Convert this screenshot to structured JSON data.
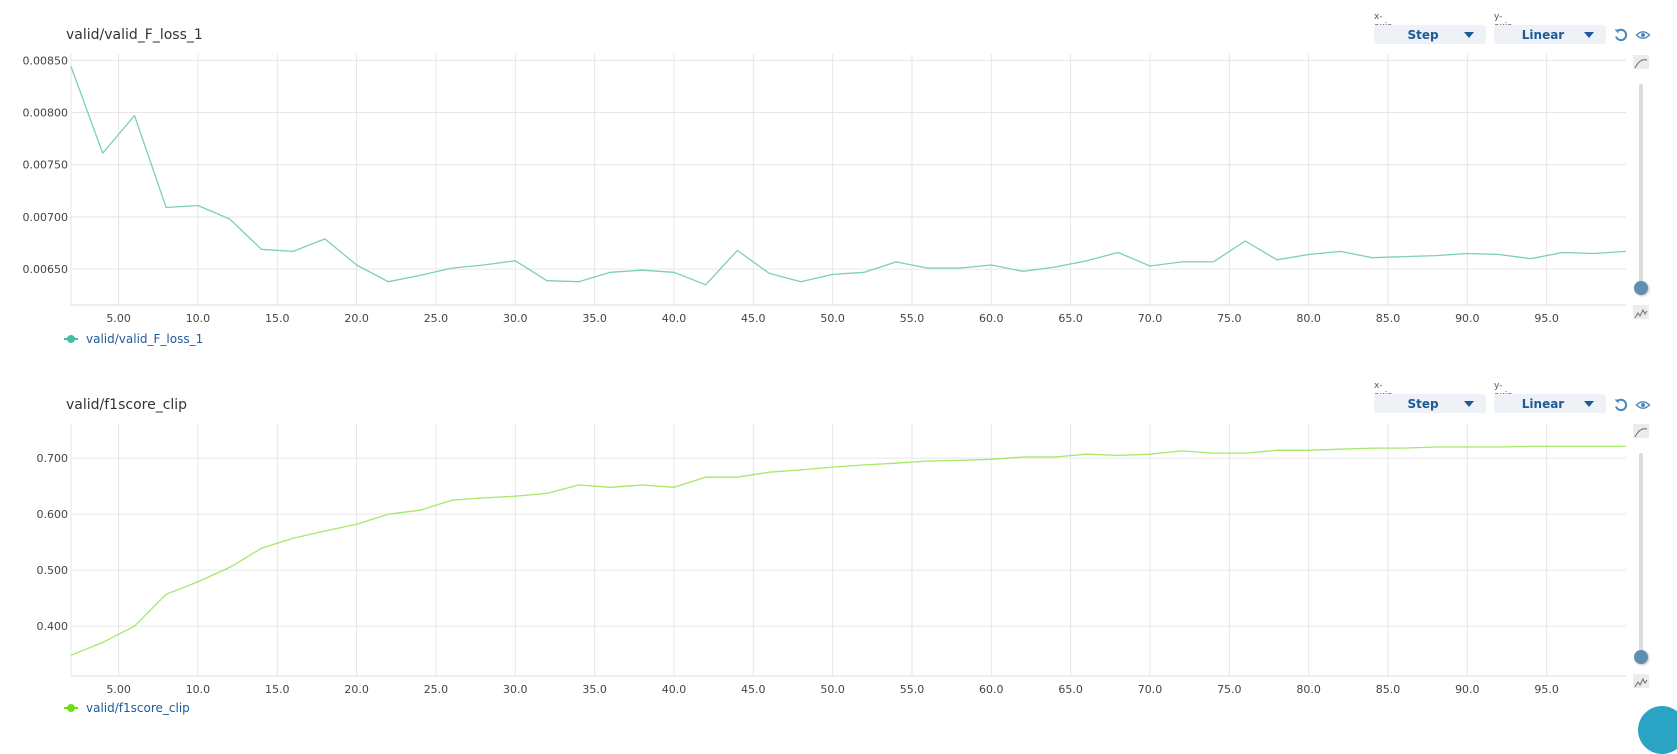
{
  "colors": {
    "series_1": "#7ccfb9",
    "series_1_legend": "#3fbf9f",
    "series_2": "#a6e86a",
    "series_2_legend": "#6fdc18",
    "accent": "#1d5a9a",
    "grid": "#e6e6e6"
  },
  "charts": [
    {
      "title": "valid/valid_F_loss_1",
      "x_axis_label": "x-axis",
      "x_axis_value": "Step",
      "y_axis_label": "y-axis",
      "y_axis_value": "Linear",
      "legend": "valid/valid_F_loss_1",
      "icons": [
        "reset-icon",
        "eye-icon",
        "smooth-curve-icon",
        "raw-curve-icon"
      ]
    },
    {
      "title": "valid/f1score_clip",
      "x_axis_label": "x-axis",
      "x_axis_value": "Step",
      "y_axis_label": "y-axis",
      "y_axis_value": "Linear",
      "legend": "valid/f1score_clip",
      "icons": [
        "reset-icon",
        "eye-icon",
        "smooth-curve-icon",
        "raw-curve-icon"
      ]
    }
  ],
  "chart_data": [
    {
      "type": "line",
      "title": "valid/valid_F_loss_1",
      "xlabel": "Step",
      "ylabel": "",
      "xlim": [
        2,
        100
      ],
      "ylim": [
        0.006157,
        0.00856
      ],
      "grid": true,
      "legend_position": "bottom-left",
      "x_ticks": [
        5,
        10,
        15,
        20,
        25,
        30,
        35,
        40,
        45,
        50,
        55,
        60,
        65,
        70,
        75,
        80,
        85,
        90,
        95
      ],
      "x_tick_labels": [
        "5.00",
        "10.0",
        "15.0",
        "20.0",
        "25.0",
        "30.0",
        "35.0",
        "40.0",
        "45.0",
        "50.0",
        "55.0",
        "60.0",
        "65.0",
        "70.0",
        "75.0",
        "80.0",
        "85.0",
        "90.0",
        "95.0"
      ],
      "y_ticks": [
        0.0065,
        0.007,
        0.0075,
        0.008,
        0.0085
      ],
      "y_tick_labels": [
        "0.00650",
        "0.00700",
        "0.00750",
        "0.00800",
        "0.00850"
      ],
      "series": [
        {
          "name": "valid/valid_F_loss_1",
          "x": [
            2,
            4,
            6,
            8,
            10,
            12,
            14,
            16,
            18,
            20,
            22,
            24,
            26,
            28,
            30,
            32,
            34,
            36,
            38,
            40,
            42,
            44,
            46,
            48,
            50,
            52,
            54,
            56,
            58,
            60,
            62,
            64,
            66,
            68,
            70,
            72,
            74,
            76,
            78,
            80,
            82,
            84,
            86,
            88,
            90,
            92,
            94,
            96,
            98,
            100
          ],
          "values": [
            0.00844,
            0.00761,
            0.00797,
            0.00709,
            0.00711,
            0.00698,
            0.00669,
            0.00667,
            0.00679,
            0.00654,
            0.00638,
            0.00644,
            0.00651,
            0.00654,
            0.00658,
            0.00639,
            0.00638,
            0.00647,
            0.00649,
            0.00647,
            0.00635,
            0.00668,
            0.00646,
            0.00638,
            0.00645,
            0.00647,
            0.00657,
            0.00651,
            0.00651,
            0.00654,
            0.00648,
            0.00652,
            0.00658,
            0.00666,
            0.00653,
            0.00657,
            0.00657,
            0.00677,
            0.00659,
            0.00664,
            0.00667,
            0.00661,
            0.00662,
            0.00663,
            0.00665,
            0.00664,
            0.0066,
            0.00666,
            0.00665,
            0.00667
          ]
        }
      ]
    },
    {
      "type": "line",
      "title": "valid/f1score_clip",
      "xlabel": "Step",
      "ylabel": "",
      "xlim": [
        2,
        100
      ],
      "ylim": [
        0.311,
        0.761
      ],
      "grid": true,
      "legend_position": "bottom-left",
      "x_ticks": [
        5,
        10,
        15,
        20,
        25,
        30,
        35,
        40,
        45,
        50,
        55,
        60,
        65,
        70,
        75,
        80,
        85,
        90,
        95
      ],
      "x_tick_labels": [
        "5.00",
        "10.0",
        "15.0",
        "20.0",
        "25.0",
        "30.0",
        "35.0",
        "40.0",
        "45.0",
        "50.0",
        "55.0",
        "60.0",
        "65.0",
        "70.0",
        "75.0",
        "80.0",
        "85.0",
        "90.0",
        "95.0"
      ],
      "y_ticks": [
        0.4,
        0.5,
        0.6,
        0.7
      ],
      "y_tick_labels": [
        "0.400",
        "0.500",
        "0.600",
        "0.700"
      ],
      "series": [
        {
          "name": "valid/f1score_clip",
          "x": [
            2,
            4,
            6,
            8,
            10,
            12,
            14,
            16,
            18,
            20,
            22,
            24,
            26,
            28,
            30,
            32,
            34,
            36,
            38,
            40,
            42,
            44,
            46,
            48,
            50,
            52,
            54,
            56,
            58,
            60,
            62,
            64,
            66,
            68,
            70,
            72,
            74,
            76,
            78,
            80,
            82,
            84,
            86,
            88,
            90,
            92,
            94,
            96,
            98,
            100
          ],
          "values": [
            0.348,
            0.371,
            0.4,
            0.457,
            0.479,
            0.505,
            0.539,
            0.557,
            0.57,
            0.582,
            0.6,
            0.607,
            0.625,
            0.629,
            0.632,
            0.637,
            0.652,
            0.648,
            0.652,
            0.648,
            0.666,
            0.666,
            0.675,
            0.679,
            0.684,
            0.688,
            0.691,
            0.695,
            0.696,
            0.698,
            0.702,
            0.702,
            0.707,
            0.705,
            0.707,
            0.713,
            0.709,
            0.709,
            0.714,
            0.714,
            0.716,
            0.718,
            0.718,
            0.72,
            0.72,
            0.72,
            0.721,
            0.721,
            0.721,
            0.721
          ]
        }
      ]
    }
  ]
}
